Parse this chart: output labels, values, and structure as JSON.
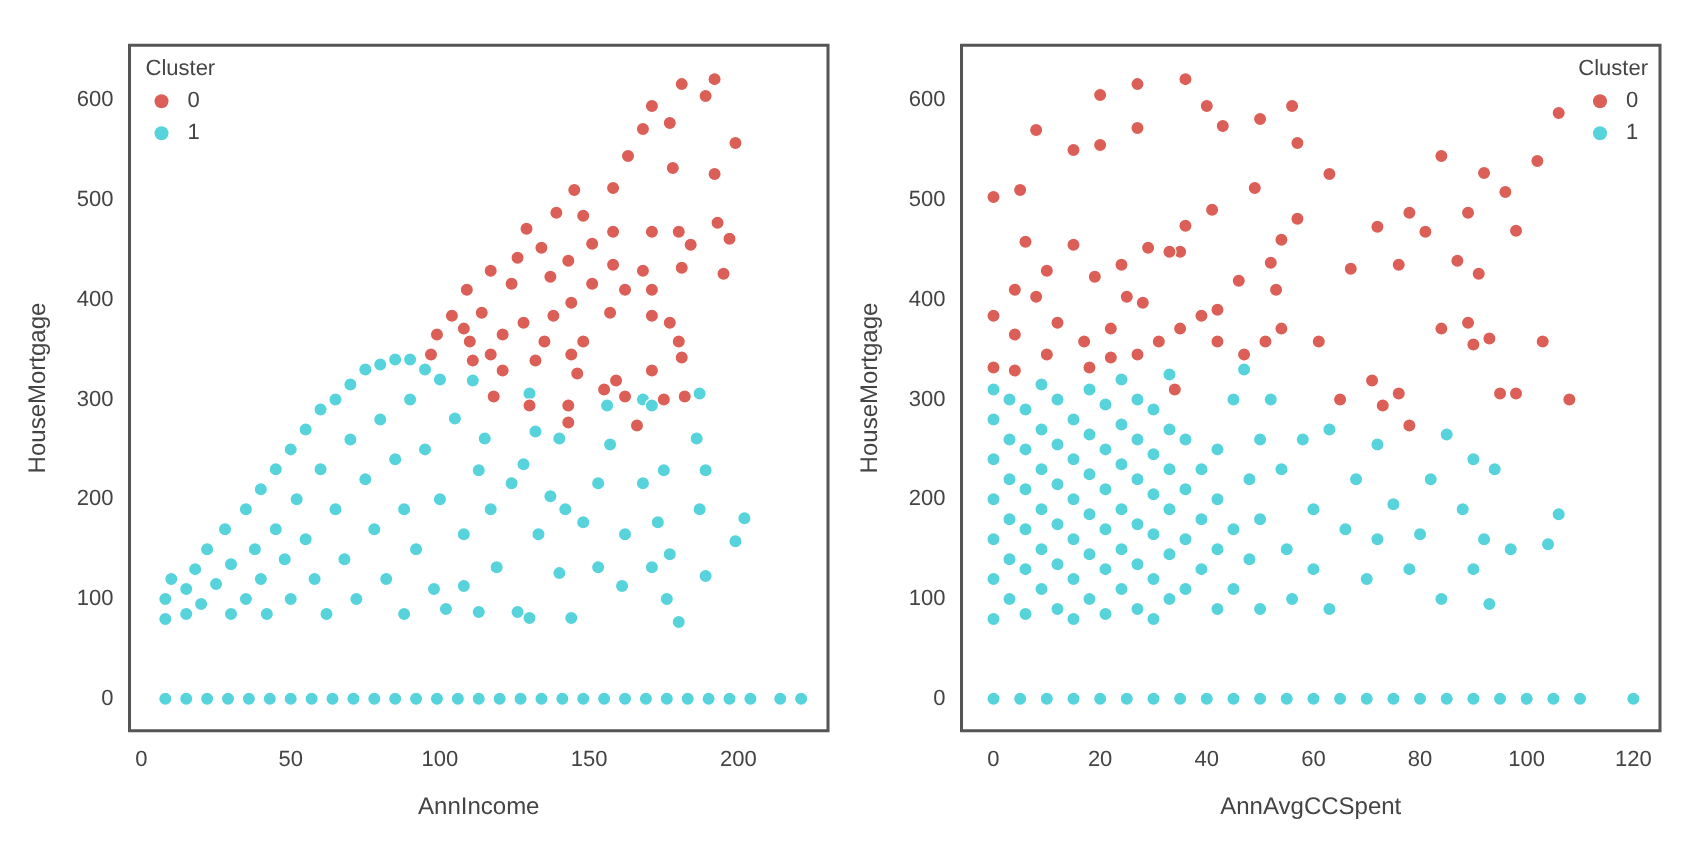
{
  "chart_data": [
    {
      "type": "scatter",
      "xlabel": "AnnIncome",
      "ylabel": "HouseMortgage",
      "legend_title": "Cluster",
      "legend": "top left",
      "marker": "circle",
      "grid": false,
      "xlim": [
        -4,
        230
      ],
      "xticks": [
        0,
        50,
        100,
        150,
        200
      ],
      "ylim": [
        -32,
        655
      ],
      "yticks": [
        0,
        100,
        200,
        300,
        400,
        500,
        600
      ],
      "series": [
        {
          "name": "0",
          "color": "#db5f57",
          "x": [
            181,
            192,
            189,
            199,
            171,
            168,
            177,
            178,
            163,
            192,
            158,
            145,
            139,
            148,
            129,
            158,
            171,
            180,
            193,
            197,
            184,
            151,
            126,
            134,
            143,
            158,
            168,
            181,
            195,
            117,
            109,
            124,
            137,
            151,
            162,
            171,
            144,
            157,
            104,
            114,
            128,
            138,
            171,
            177,
            99,
            110,
            121,
            135,
            148,
            180,
            97,
            117,
            132,
            144,
            181,
            121,
            146,
            159,
            171,
            155,
            162,
            175,
            182,
            118,
            130,
            143,
            166,
            143,
            111,
            108
          ],
          "values": [
            616,
            621,
            604,
            557,
            594,
            571,
            577,
            532,
            544,
            526,
            512,
            510,
            487,
            484,
            471,
            468,
            468,
            468,
            477,
            461,
            455,
            456,
            442,
            452,
            439,
            435,
            429,
            432,
            426,
            429,
            410,
            416,
            423,
            416,
            410,
            410,
            397,
            387,
            384,
            387,
            377,
            384,
            384,
            377,
            365,
            358,
            365,
            358,
            358,
            358,
            345,
            345,
            339,
            345,
            342,
            329,
            326,
            319,
            329,
            310,
            303,
            300,
            303,
            303,
            294,
            294,
            274,
            277,
            339,
            371
          ]
        },
        {
          "name": "1",
          "color": "#57d3db",
          "x": [
            8,
            8,
            10,
            15,
            15,
            18,
            20,
            22,
            25,
            28,
            30,
            30,
            35,
            35,
            38,
            40,
            40,
            42,
            45,
            45,
            48,
            50,
            50,
            52,
            55,
            55,
            58,
            60,
            60,
            62,
            65,
            65,
            68,
            70,
            70,
            72,
            75,
            75,
            78,
            80,
            80,
            82,
            85,
            85,
            88,
            88,
            90,
            90,
            92,
            95,
            95,
            98,
            100,
            100,
            102,
            187,
            168,
            111,
            105,
            115,
            113,
            124,
            117,
            108,
            119,
            108,
            113,
            126,
            130,
            132,
            128,
            140,
            137,
            133,
            140,
            130,
            144,
            148,
            153,
            157,
            153,
            161,
            156,
            168,
            173,
            171,
            176,
            177,
            175,
            186,
            189,
            187,
            189,
            202,
            199,
            180,
            171,
            162,
            142,
            8,
            15,
            22,
            29,
            36,
            43,
            50,
            57,
            64,
            71,
            78,
            85,
            92,
            99,
            106,
            113,
            120,
            127,
            134,
            141,
            148,
            155,
            162,
            169,
            176,
            183,
            190,
            197,
            204,
            214,
            221
          ],
          "values": [
            80,
            100,
            120,
            85,
            110,
            130,
            95,
            150,
            115,
            170,
            85,
            135,
            190,
            100,
            150,
            210,
            120,
            85,
            230,
            170,
            140,
            250,
            100,
            200,
            270,
            160,
            120,
            290,
            230,
            85,
            300,
            190,
            140,
            315,
            260,
            100,
            330,
            220,
            170,
            335,
            280,
            120,
            340,
            240,
            190,
            85,
            340,
            300,
            150,
            330,
            250,
            110,
            320,
            200,
            90,
            306,
            300,
            319,
            281,
            261,
            229,
            216,
            190,
            165,
            132,
            113,
            87,
            87,
            306,
            268,
            235,
            261,
            203,
            165,
            126,
            81,
            81,
            177,
            216,
            255,
            132,
            113,
            294,
            216,
            177,
            132,
            100,
            145,
            229,
            261,
            229,
            190,
            123,
            181,
            158,
            77,
            294,
            165,
            190,
            0,
            0,
            0,
            0,
            0,
            0,
            0,
            0,
            0,
            0,
            0,
            0,
            0,
            0,
            0,
            0,
            0,
            0,
            0,
            0,
            0,
            0,
            0,
            0,
            0,
            0,
            0,
            0,
            0,
            0,
            0
          ]
        }
      ]
    },
    {
      "type": "scatter",
      "xlabel": "AnnAvgCCSpent",
      "ylabel": "HouseMortgage",
      "legend_title": "Cluster",
      "legend": "top right",
      "marker": "circle",
      "grid": false,
      "xlim": [
        -6,
        125
      ],
      "xticks": [
        0,
        20,
        40,
        60,
        80,
        100,
        120
      ],
      "ylim": [
        -32,
        655
      ],
      "yticks": [
        0,
        100,
        200,
        300,
        400,
        500,
        600
      ],
      "series": [
        {
          "name": "0",
          "color": "#db5f57",
          "x": [
            0,
            5,
            8,
            20,
            27,
            36,
            27,
            20,
            15,
            40,
            43,
            50,
            56,
            57,
            63,
            49,
            41,
            84,
            92,
            96,
            102,
            106,
            98,
            89,
            78,
            72,
            81,
            87,
            76,
            91,
            67,
            57,
            54,
            52,
            53,
            46,
            42,
            36,
            35,
            33,
            29,
            24,
            19,
            15,
            10,
            6,
            4,
            0,
            4,
            8,
            12,
            17,
            22,
            25,
            28,
            31,
            27,
            35,
            39,
            42,
            47,
            51,
            54,
            61,
            65,
            71,
            73,
            76,
            78,
            84,
            89,
            90,
            93,
            95,
            98,
            103,
            108,
            0,
            4,
            10,
            18,
            22,
            34
          ],
          "values": [
            503,
            510,
            570,
            605,
            616,
            621,
            572,
            555,
            550,
            594,
            574,
            581,
            594,
            557,
            526,
            512,
            490,
            544,
            527,
            508,
            539,
            587,
            469,
            487,
            487,
            473,
            468,
            439,
            435,
            426,
            431,
            481,
            460,
            437,
            410,
            419,
            390,
            474,
            448,
            448,
            452,
            435,
            423,
            455,
            429,
            458,
            410,
            384,
            365,
            403,
            377,
            358,
            371,
            403,
            397,
            358,
            345,
            371,
            384,
            358,
            345,
            358,
            371,
            358,
            300,
            319,
            294,
            306,
            274,
            371,
            377,
            355,
            361,
            306,
            306,
            358,
            300,
            332,
            329,
            345,
            332,
            342,
            310
          ]
        },
        {
          "name": "1",
          "color": "#57d3db",
          "x": [
            0,
            0,
            0,
            0,
            0,
            0,
            0,
            3,
            3,
            3,
            3,
            3,
            3,
            6,
            6,
            6,
            6,
            6,
            6,
            9,
            9,
            9,
            9,
            9,
            9,
            12,
            12,
            12,
            12,
            12,
            12,
            15,
            15,
            15,
            15,
            15,
            15,
            18,
            18,
            18,
            18,
            18,
            18,
            21,
            21,
            21,
            21,
            21,
            21,
            24,
            24,
            24,
            24,
            24,
            24,
            27,
            27,
            27,
            27,
            27,
            27,
            30,
            30,
            30,
            30,
            30,
            30,
            33,
            33,
            33,
            33,
            33,
            33,
            36,
            36,
            36,
            36,
            39,
            39,
            39,
            42,
            42,
            42,
            42,
            45,
            45,
            45,
            47,
            48,
            48,
            50,
            50,
            50,
            52,
            54,
            55,
            56,
            58,
            60,
            60,
            63,
            63,
            66,
            68,
            70,
            72,
            72,
            75,
            78,
            80,
            82,
            84,
            85,
            88,
            90,
            90,
            92,
            93,
            94,
            97,
            104,
            106,
            0,
            5,
            10,
            15,
            20,
            25,
            30,
            35,
            40,
            45,
            50,
            55,
            60,
            65,
            70,
            75,
            80,
            85,
            90,
            95,
            100,
            105,
            110,
            120
          ],
          "values": [
            80,
            120,
            160,
            200,
            240,
            280,
            310,
            100,
            140,
            180,
            220,
            260,
            300,
            85,
            130,
            170,
            210,
            250,
            290,
            110,
            150,
            190,
            230,
            270,
            315,
            90,
            135,
            175,
            215,
            255,
            300,
            80,
            120,
            160,
            200,
            240,
            280,
            100,
            145,
            185,
            225,
            265,
            310,
            85,
            130,
            170,
            210,
            250,
            295,
            110,
            150,
            190,
            235,
            275,
            320,
            90,
            135,
            175,
            220,
            260,
            300,
            80,
            120,
            165,
            205,
            245,
            290,
            100,
            145,
            190,
            230,
            270,
            325,
            110,
            160,
            210,
            260,
            130,
            180,
            230,
            90,
            150,
            200,
            250,
            110,
            170,
            300,
            330,
            220,
            140,
            260,
            180,
            90,
            300,
            230,
            150,
            100,
            260,
            190,
            130,
            270,
            90,
            170,
            220,
            120,
            160,
            255,
            195,
            130,
            165,
            220,
            100,
            265,
            190,
            130,
            240,
            160,
            95,
            230,
            150,
            155,
            185,
            0,
            0,
            0,
            0,
            0,
            0,
            0,
            0,
            0,
            0,
            0,
            0,
            0,
            0,
            0,
            0,
            0,
            0,
            0,
            0,
            0,
            0,
            0,
            0
          ]
        }
      ]
    }
  ]
}
